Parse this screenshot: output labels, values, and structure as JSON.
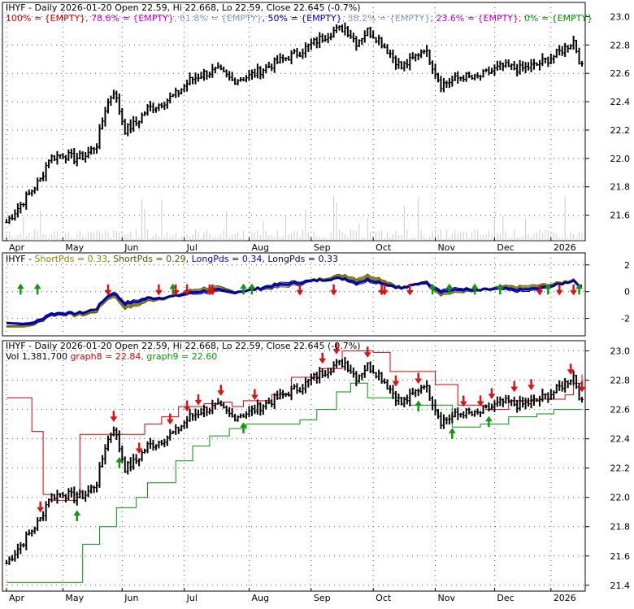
{
  "colors": {
    "price_bar": "#000000",
    "grid": "#555555",
    "resistance_line": "#dd0000",
    "support_line": "#009900",
    "fib_100": "#dd0000",
    "fib_786": "#cc00cc",
    "fib_618": "#8899cc",
    "fib_50": "#0000cc",
    "fib_382": "#8899cc",
    "fib_236": "#cc00cc",
    "fib_0": "#009900",
    "pds_short1": "#888800",
    "pds_short2": "#555500",
    "pds_long1": "#0000cc",
    "pds_long2": "#000066",
    "up_arrow": "#119911",
    "down_arrow": "#dd1111"
  },
  "chart_data": [
    {
      "type": "ohlc",
      "panel": "price-fibonacci",
      "header_title": "IHYF - Daily 2026-01-20 Open 22.59, Hi 22.668, Lo 22.59, Close 22.645 (-0.7%)",
      "legend": [
        {
          "label": "100% = {EMPTY}",
          "color": "#dd0000"
        },
        {
          "label": "78.6% = {EMPTY}",
          "color": "#cc00cc"
        },
        {
          "label": "61.8% = {EMPTY}",
          "color": "#8899cc"
        },
        {
          "label": "50% = {EMPTY}",
          "color": "#0000cc"
        },
        {
          "label": "38.2% = {EMPTY}",
          "color": "#8899cc"
        },
        {
          "label": "23.6% = {EMPTY}",
          "color": "#cc00cc"
        },
        {
          "label": "0% = {EMPTY}",
          "color": "#009900"
        }
      ],
      "ylim": [
        21.42,
        23.1
      ],
      "yticks": [
        21.6,
        21.8,
        22.0,
        22.2,
        22.4,
        22.6,
        22.8,
        23.0
      ],
      "x_ticks": [
        "Apr",
        "May",
        "Jun",
        "Jul",
        "Aug",
        "Sep",
        "Oct",
        "Nov",
        "Dec",
        "2026"
      ],
      "grid": true
    },
    {
      "type": "line",
      "panel": "pds-indicator",
      "header_title": "IHYF - ShortPds = 0.33, ShortPds = 0.29, LongPds = 0.34, LongPds = 0.33",
      "series": [
        {
          "name": "ShortPds = 0.33",
          "last": 0.33
        },
        {
          "name": "ShortPds = 0.29",
          "last": 0.29
        },
        {
          "name": "LongPds = 0.34",
          "last": 0.34
        },
        {
          "name": "LongPds = 0.33",
          "last": 0.33
        }
      ],
      "ylim": [
        -3.3,
        2.9
      ],
      "yticks": [
        -2,
        0,
        2
      ],
      "grid": true
    },
    {
      "type": "ohlc",
      "panel": "price-stops",
      "header_title": "IHYF - Daily 2026-01-20 Open 22.59, Hi 22.668, Lo 22.59, Close 22.645 (-0.7%)",
      "subtitle": "Vol 1,381,700",
      "legend": [
        {
          "label": "graph8 = 22.84",
          "color": "#dd0000"
        },
        {
          "label": "graph9 = 22.60",
          "color": "#009900"
        }
      ],
      "ylim": [
        21.36,
        23.07
      ],
      "yticks": [
        21.4,
        21.6,
        21.8,
        22.0,
        22.2,
        22.4,
        22.6,
        22.8,
        23.0
      ],
      "x_ticks": [
        "Apr",
        "May",
        "Jun",
        "Jul",
        "Aug",
        "Sep",
        "Oct",
        "Nov",
        "Dec",
        "2026"
      ],
      "grid": true
    }
  ]
}
